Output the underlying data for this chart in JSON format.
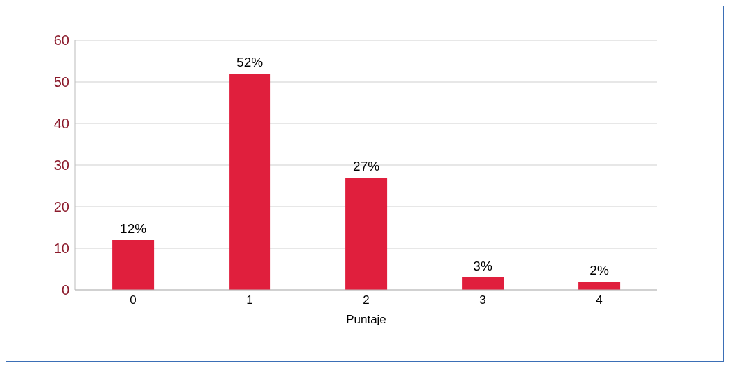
{
  "chart_data": {
    "type": "bar",
    "xlabel": "Puntaje",
    "categories": [
      "0",
      "1",
      "2",
      "3",
      "4"
    ],
    "values": [
      12,
      52,
      27,
      3,
      2
    ],
    "value_labels": [
      "12%",
      "52%",
      "27%",
      "3%",
      "2%"
    ],
    "color": "#e01f3d",
    "ylim": [
      0,
      60
    ],
    "yticks": [
      0,
      10,
      20,
      30,
      40,
      50,
      60
    ],
    "grid": "y"
  }
}
